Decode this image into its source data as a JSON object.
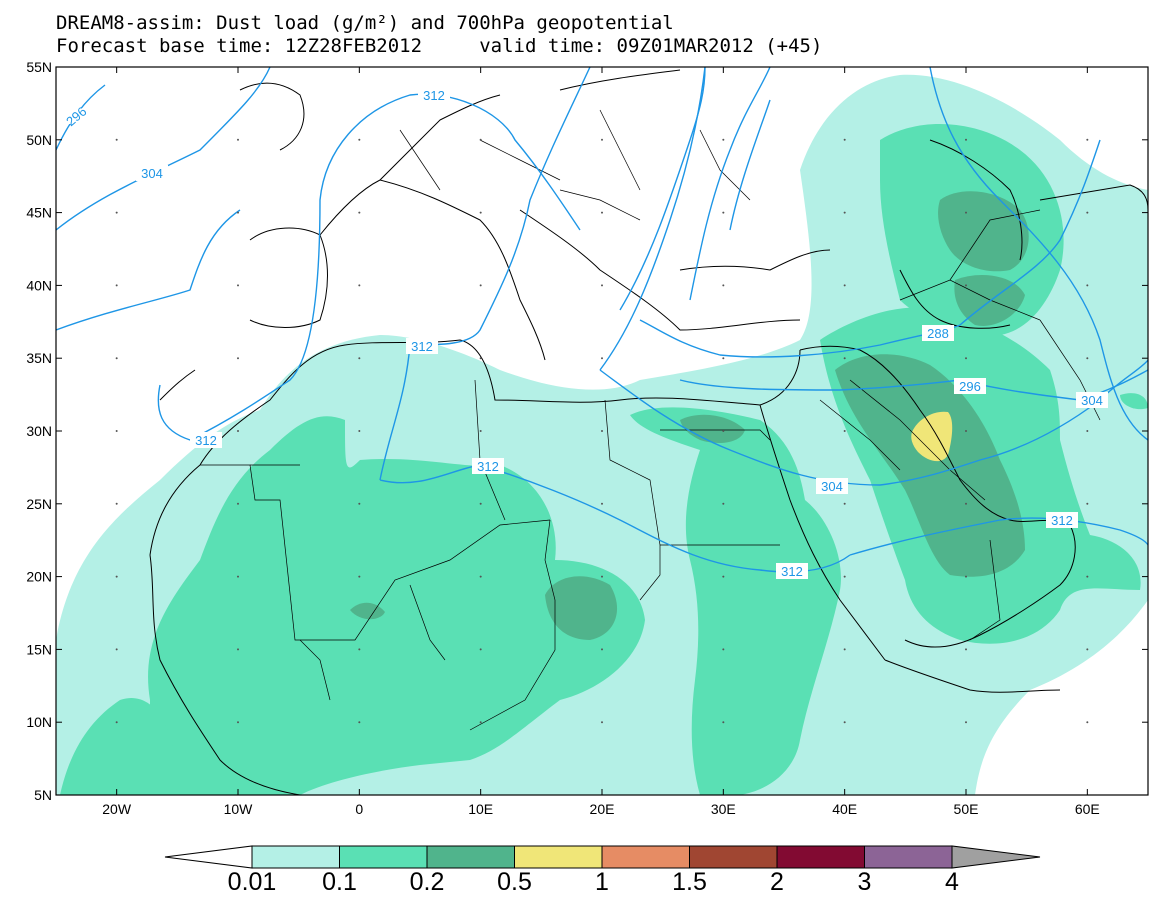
{
  "title": {
    "line1": "DREAM8-assim: Dust load (g/m²) and 700hPa geopotential",
    "line2": "Forecast base time: 12Z28FEB2012     valid time: 09Z01MAR2012 (+45)"
  },
  "axes": {
    "lat_labels": [
      "55N",
      "50N",
      "45N",
      "40N",
      "35N",
      "30N",
      "25N",
      "20N",
      "15N",
      "10N",
      "5N"
    ],
    "lon_labels": [
      "20W",
      "10W",
      "0",
      "10E",
      "20E",
      "30E",
      "40E",
      "50E",
      "60E"
    ]
  },
  "contour_labels": [
    "296",
    "304",
    "312",
    "312",
    "312",
    "312",
    "312",
    "288",
    "296",
    "304",
    "304",
    "312"
  ],
  "colorbar": {
    "levels": [
      "0.01",
      "0.1",
      "0.2",
      "0.5",
      "1",
      "1.5",
      "2",
      "3",
      "4"
    ],
    "colors": [
      "#ffffff",
      "#b4f0e6",
      "#5ae0b4",
      "#50b48c",
      "#f0e678",
      "#e68c64",
      "#a04632",
      "#820a32",
      "#8c6496",
      "#a0a0a0"
    ]
  },
  "colors": {
    "dust_light": "#b4f0e6",
    "dust_mid": "#5ae0b4",
    "dust_dark": "#50b48c",
    "dust_yellow": "#f0e678",
    "geopotential_line": "#1e96e6",
    "coast": "#000000"
  }
}
